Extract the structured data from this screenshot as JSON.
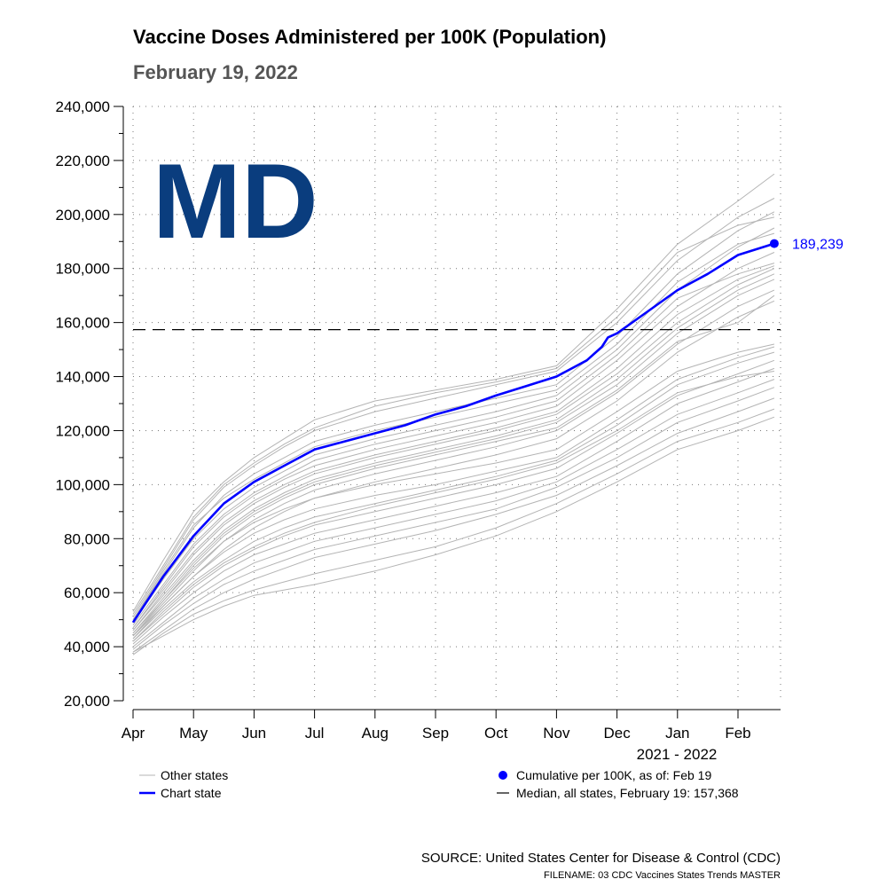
{
  "title": "Vaccine Doses Administered per 100K (Population)",
  "subtitle": "February 19, 2022",
  "state_label": "MD",
  "footer": {
    "source": "SOURCE: United States Center for Disease & Control (CDC)",
    "filename": "FILENAME: 03 CDC Vaccines States Trends MASTER"
  },
  "colors": {
    "chart_state": "#0000ff",
    "other_states": "#b4b4b4",
    "state_label": "#0a3d7e",
    "median": "#000000"
  },
  "chart_data": {
    "type": "line",
    "title": "Vaccine Doses Administered per 100K (Population)",
    "subtitle": "February 19, 2022",
    "xlabel": "2021 - 2022",
    "ylabel": "",
    "x_unit": "months since Apr 1, 2021",
    "xlim": [
      0,
      10.6
    ],
    "ylim": [
      20000,
      240000
    ],
    "y_ticks": [
      20000,
      40000,
      60000,
      80000,
      100000,
      120000,
      140000,
      160000,
      180000,
      200000,
      220000,
      240000
    ],
    "y_tick_labels": [
      "20,000",
      "40,000",
      "60,000",
      "80,000",
      "100,000",
      "120,000",
      "140,000",
      "160,000",
      "180,000",
      "200,000",
      "220,000",
      "240,000"
    ],
    "x_ticks": [
      0,
      1,
      2,
      3,
      4,
      5,
      6,
      7,
      8,
      9,
      10
    ],
    "x_tick_labels": [
      "Apr",
      "May",
      "Jun",
      "Jul",
      "Aug",
      "Sep",
      "Oct",
      "Nov",
      "Dec",
      "Jan",
      "Feb"
    ],
    "grid": true,
    "median": {
      "value": 157368,
      "label": "Median, all states, February 19: 157,368"
    },
    "end_point": {
      "x": 10.6,
      "value": 189239,
      "label": "189,239"
    },
    "legend": {
      "other_states": "Other states",
      "chart_state": "Chart state",
      "cumulative": "Cumulative per 100K, as of: Feb 19",
      "median": "Median, all states, February 19: 157,368"
    },
    "chart_state_series": {
      "name": "MD",
      "x": [
        0,
        0.5,
        1,
        1.5,
        2,
        2.5,
        3,
        3.5,
        4,
        4.5,
        5,
        5.5,
        6,
        6.5,
        7,
        7.5,
        7.75,
        7.85,
        8,
        8.5,
        9,
        9.5,
        10,
        10.6
      ],
      "values": [
        49000,
        66000,
        81000,
        93000,
        101000,
        107000,
        113000,
        116000,
        119000,
        122000,
        126000,
        129000,
        133000,
        136500,
        140000,
        146000,
        151000,
        154500,
        156000,
        164000,
        172000,
        178000,
        185000,
        189239
      ]
    },
    "other_states_series": [
      {
        "name": "state-1",
        "x": [
          0,
          0.5,
          1,
          1.5,
          2,
          2.5,
          3,
          4,
          5,
          6,
          7,
          8,
          9,
          10,
          10.6
        ],
        "values": [
          53000,
          72000,
          90000,
          101000,
          110000,
          117000,
          124000,
          131000,
          135000,
          139000,
          144000,
          165000,
          189000,
          205000,
          215000
        ]
      },
      {
        "name": "state-2",
        "x": [
          0,
          0.5,
          1,
          1.5,
          2,
          2.5,
          3,
          4,
          5,
          6,
          7,
          8,
          9,
          10,
          10.6
        ],
        "values": [
          51000,
          69000,
          87000,
          99000,
          107000,
          114000,
          120000,
          127000,
          132000,
          137000,
          142000,
          160000,
          183000,
          199000,
          206000
        ]
      },
      {
        "name": "state-3",
        "x": [
          0,
          0.5,
          1,
          1.5,
          2,
          2.5,
          3,
          4,
          5,
          6,
          7,
          8,
          9,
          10,
          10.6
        ],
        "values": [
          50000,
          67000,
          84000,
          96000,
          104000,
          110000,
          116000,
          122000,
          127000,
          132000,
          137000,
          155000,
          178000,
          194000,
          201000
        ]
      },
      {
        "name": "state-4",
        "x": [
          0,
          0.5,
          1,
          1.5,
          2,
          2.5,
          3,
          4,
          5,
          6,
          7,
          8,
          9,
          10,
          10.6
        ],
        "values": [
          49000,
          65000,
          80000,
          91000,
          99000,
          105000,
          111000,
          117000,
          122000,
          127000,
          133000,
          150000,
          172000,
          188000,
          195000
        ]
      },
      {
        "name": "state-5",
        "x": [
          0,
          0.5,
          1,
          1.5,
          2,
          2.5,
          3,
          4,
          5,
          6,
          7,
          8,
          9,
          10,
          10.6
        ],
        "values": [
          47000,
          62000,
          77000,
          88000,
          96000,
          102000,
          107000,
          113000,
          118000,
          123000,
          129000,
          146000,
          166000,
          180000,
          186000
        ]
      },
      {
        "name": "state-6",
        "x": [
          0,
          0.5,
          1,
          1.5,
          2,
          2.5,
          3,
          4,
          5,
          6,
          7,
          8,
          9,
          10,
          10.6
        ],
        "values": [
          46000,
          60000,
          74000,
          85000,
          93000,
          99000,
          104000,
          110000,
          115000,
          120000,
          126000,
          141000,
          160000,
          174000,
          180000
        ]
      },
      {
        "name": "state-7",
        "x": [
          0,
          0.5,
          1,
          1.5,
          2,
          2.5,
          3,
          4,
          5,
          6,
          7,
          8,
          9,
          10,
          10.6
        ],
        "values": [
          45000,
          58000,
          71000,
          82000,
          90000,
          96000,
          101000,
          107000,
          112000,
          117000,
          123000,
          137000,
          156000,
          170000,
          176000
        ]
      },
      {
        "name": "state-8",
        "x": [
          0,
          0.5,
          1,
          1.5,
          2,
          2.5,
          3,
          4,
          5,
          6,
          7,
          8,
          9,
          10,
          10.6
        ],
        "values": [
          44000,
          56000,
          68000,
          79000,
          87000,
          93000,
          98000,
          104000,
          109000,
          114000,
          120000,
          134000,
          152000,
          166000,
          172000
        ]
      },
      {
        "name": "state-9",
        "x": [
          0,
          0.5,
          1,
          1.5,
          2,
          2.5,
          3,
          4,
          5,
          6,
          7,
          8,
          9,
          10,
          10.6
        ],
        "values": [
          43000,
          55000,
          66000,
          76000,
          84000,
          90000,
          95000,
          101000,
          106000,
          111000,
          117000,
          131000,
          149000,
          162000,
          168000
        ]
      },
      {
        "name": "state-10",
        "x": [
          0,
          0.5,
          1,
          1.5,
          2,
          2.5,
          3,
          4,
          5,
          6,
          7,
          8,
          9,
          10,
          10.6
        ],
        "values": [
          52000,
          70000,
          88000,
          100000,
          108000,
          115000,
          121000,
          129000,
          134000,
          138000,
          143000,
          162000,
          186000,
          196000,
          199000
        ]
      },
      {
        "name": "state-11",
        "x": [
          0,
          0.5,
          1,
          1.5,
          2,
          2.5,
          3,
          4,
          5,
          6,
          7,
          8,
          9,
          10,
          10.6
        ],
        "values": [
          48000,
          63000,
          78000,
          89000,
          97000,
          103000,
          109000,
          115000,
          120000,
          125000,
          131000,
          148000,
          169000,
          178000,
          182000
        ]
      },
      {
        "name": "state-12",
        "x": [
          0,
          0.5,
          1,
          1.5,
          2,
          2.5,
          3,
          4,
          5,
          6,
          7,
          8,
          9,
          10,
          10.6
        ],
        "values": [
          46000,
          59000,
          72000,
          83000,
          91000,
          97000,
          102000,
          108000,
          113000,
          118000,
          124000,
          139000,
          158000,
          172000,
          178000
        ]
      },
      {
        "name": "state-13",
        "x": [
          0,
          0.5,
          1,
          1.5,
          2,
          2.5,
          3,
          4,
          5,
          6,
          7,
          8,
          9,
          10,
          10.6
        ],
        "values": [
          45000,
          57000,
          69000,
          79000,
          86000,
          91000,
          95000,
          100000,
          104000,
          108000,
          113000,
          127000,
          142000,
          149000,
          152000
        ]
      },
      {
        "name": "state-14",
        "x": [
          0,
          0.5,
          1,
          1.5,
          2,
          2.5,
          3,
          4,
          5,
          6,
          7,
          8,
          9,
          10,
          10.6
        ],
        "values": [
          44000,
          55000,
          66000,
          75000,
          82000,
          87000,
          91000,
          96000,
          100000,
          105000,
          110000,
          124000,
          139000,
          147000,
          151000
        ]
      },
      {
        "name": "state-15",
        "x": [
          0,
          0.5,
          1,
          1.5,
          2,
          2.5,
          3,
          4,
          5,
          6,
          7,
          8,
          9,
          10,
          10.6
        ],
        "values": [
          43000,
          54000,
          64000,
          72000,
          79000,
          84000,
          88000,
          93000,
          98000,
          103000,
          109000,
          122000,
          137000,
          145000,
          149000
        ]
      },
      {
        "name": "state-16",
        "x": [
          0,
          0.5,
          1,
          1.5,
          2,
          2.5,
          3,
          4,
          5,
          6,
          7,
          8,
          9,
          10,
          10.6
        ],
        "values": [
          42000,
          52000,
          62000,
          70000,
          76000,
          81000,
          85000,
          90000,
          95000,
          100000,
          106000,
          119000,
          133000,
          141000,
          146000
        ]
      },
      {
        "name": "state-17",
        "x": [
          0,
          0.5,
          1,
          1.5,
          2,
          2.5,
          3,
          4,
          5,
          6,
          7,
          8,
          9,
          10,
          10.6
        ],
        "values": [
          41000,
          51000,
          60000,
          68000,
          74000,
          78000,
          82000,
          87000,
          92000,
          97000,
          103000,
          116000,
          130000,
          138000,
          143000
        ]
      },
      {
        "name": "state-18",
        "x": [
          0,
          0.5,
          1,
          1.5,
          2,
          2.5,
          3,
          4,
          5,
          6,
          7,
          8,
          9,
          10,
          10.6
        ],
        "values": [
          40000,
          49000,
          58000,
          65000,
          71000,
          75000,
          79000,
          84000,
          89000,
          94000,
          101000,
          113000,
          126000,
          134000,
          139000
        ]
      },
      {
        "name": "state-19",
        "x": [
          0,
          0.5,
          1,
          1.5,
          2,
          2.5,
          3,
          4,
          5,
          6,
          7,
          8,
          9,
          10,
          10.6
        ],
        "values": [
          39000,
          48000,
          56000,
          63000,
          68000,
          72000,
          76000,
          81000,
          86000,
          91000,
          99000,
          110000,
          123000,
          131000,
          136000
        ]
      },
      {
        "name": "state-20",
        "x": [
          0,
          0.5,
          1,
          1.5,
          2,
          2.5,
          3,
          4,
          5,
          6,
          7,
          8,
          9,
          10,
          10.6
        ],
        "values": [
          38000,
          46000,
          54000,
          60000,
          65000,
          69000,
          73000,
          78000,
          83000,
          89000,
          96000,
          107000,
          119000,
          127000,
          132000
        ]
      },
      {
        "name": "state-21",
        "x": [
          0,
          0.5,
          1,
          1.5,
          2,
          2.5,
          3,
          4,
          5,
          6,
          7,
          8,
          9,
          10,
          10.6
        ],
        "values": [
          37000,
          45000,
          52000,
          57000,
          61000,
          64000,
          67000,
          72000,
          77000,
          84000,
          93000,
          104000,
          116000,
          123000,
          128000
        ]
      },
      {
        "name": "state-22",
        "x": [
          0,
          0.5,
          1,
          1.5,
          2,
          2.5,
          3,
          4,
          5,
          6,
          7,
          8,
          9,
          10,
          10.6
        ],
        "values": [
          38000,
          44000,
          50000,
          55000,
          59000,
          61000,
          63000,
          68000,
          74000,
          81000,
          90000,
          101000,
          113000,
          120000,
          125000
        ]
      },
      {
        "name": "state-23",
        "x": [
          0,
          0.5,
          1,
          1.5,
          2,
          2.5,
          3,
          4,
          5,
          6,
          7,
          8,
          9,
          10,
          10.6
        ],
        "values": [
          44000,
          57000,
          70000,
          81000,
          89000,
          95000,
          100000,
          106000,
          111000,
          116000,
          121000,
          135000,
          153000,
          160000,
          170000
        ]
      },
      {
        "name": "state-24",
        "x": [
          0,
          0.5,
          1,
          1.5,
          2,
          2.5,
          3,
          4,
          5,
          6,
          7,
          8,
          9,
          10,
          10.6
        ],
        "values": [
          42000,
          53000,
          63000,
          71000,
          77000,
          82000,
          86000,
          92000,
          97000,
          102000,
          108000,
          120000,
          134000,
          140000,
          142000
        ]
      },
      {
        "name": "state-25",
        "x": [
          0,
          0.5,
          1,
          1.5,
          2,
          2.5,
          3,
          4,
          5,
          6,
          7,
          8,
          9,
          10,
          10.6
        ],
        "values": [
          47000,
          61000,
          75000,
          86000,
          94000,
          100000,
          105000,
          111000,
          116000,
          121000,
          127000,
          143000,
          163000,
          176000,
          181000
        ]
      },
      {
        "name": "state-26",
        "x": [
          0,
          0.5,
          1,
          1.5,
          2,
          2.5,
          3,
          4,
          5,
          6,
          7,
          8,
          9,
          10,
          10.6
        ],
        "values": [
          50000,
          68000,
          85000,
          95000,
          102000,
          108000,
          114000,
          120000,
          125000,
          130000,
          135000,
          152000,
          175000,
          189000,
          193000
        ]
      }
    ]
  }
}
